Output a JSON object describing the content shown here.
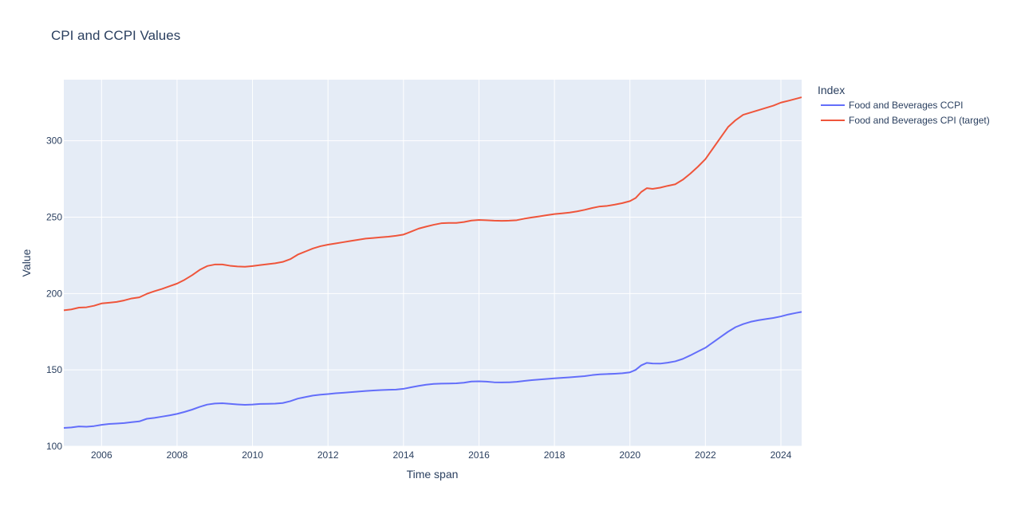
{
  "chart_data": {
    "type": "line",
    "title": "CPI and CCPI Values",
    "xlabel": "Time span",
    "ylabel": "Value",
    "xlim": [
      2005.0,
      2024.55
    ],
    "ylim": [
      100,
      340
    ],
    "x_ticks": [
      2006,
      2008,
      2010,
      2012,
      2014,
      2016,
      2018,
      2020,
      2022,
      2024
    ],
    "x_tick_labels": [
      "2006",
      "2008",
      "2010",
      "2012",
      "2014",
      "2016",
      "2018",
      "2020",
      "2022",
      "2024"
    ],
    "y_ticks": [
      100,
      150,
      200,
      250,
      300
    ],
    "y_tick_labels": [
      "100",
      "150",
      "200",
      "250",
      "300"
    ],
    "grid": true,
    "background": "#e5ecf6",
    "legend": {
      "title": "Index",
      "placement": "right"
    },
    "series": [
      {
        "name": "Food and Beverages CCPI",
        "color": "#636efa",
        "points": [
          [
            2005.0,
            112.0
          ],
          [
            2005.2,
            112.3
          ],
          [
            2005.4,
            113.0
          ],
          [
            2005.6,
            112.8
          ],
          [
            2005.8,
            113.2
          ],
          [
            2006.0,
            114.0
          ],
          [
            2006.2,
            114.6
          ],
          [
            2006.4,
            114.9
          ],
          [
            2006.6,
            115.2
          ],
          [
            2006.8,
            115.8
          ],
          [
            2007.0,
            116.3
          ],
          [
            2007.2,
            118.0
          ],
          [
            2007.4,
            118.6
          ],
          [
            2007.6,
            119.4
          ],
          [
            2007.8,
            120.2
          ],
          [
            2008.0,
            121.2
          ],
          [
            2008.2,
            122.5
          ],
          [
            2008.4,
            124.0
          ],
          [
            2008.6,
            125.8
          ],
          [
            2008.8,
            127.3
          ],
          [
            2009.0,
            128.0
          ],
          [
            2009.2,
            128.2
          ],
          [
            2009.4,
            127.8
          ],
          [
            2009.6,
            127.4
          ],
          [
            2009.8,
            127.1
          ],
          [
            2010.0,
            127.3
          ],
          [
            2010.2,
            127.7
          ],
          [
            2010.4,
            127.8
          ],
          [
            2010.6,
            127.9
          ],
          [
            2010.8,
            128.3
          ],
          [
            2011.0,
            129.5
          ],
          [
            2011.2,
            131.2
          ],
          [
            2011.4,
            132.2
          ],
          [
            2011.6,
            133.2
          ],
          [
            2011.8,
            133.8
          ],
          [
            2012.0,
            134.2
          ],
          [
            2012.2,
            134.7
          ],
          [
            2012.4,
            135.0
          ],
          [
            2012.6,
            135.4
          ],
          [
            2012.8,
            135.8
          ],
          [
            2013.0,
            136.2
          ],
          [
            2013.2,
            136.5
          ],
          [
            2013.4,
            136.8
          ],
          [
            2013.6,
            137.0
          ],
          [
            2013.8,
            137.1
          ],
          [
            2014.0,
            137.6
          ],
          [
            2014.2,
            138.6
          ],
          [
            2014.4,
            139.5
          ],
          [
            2014.6,
            140.3
          ],
          [
            2014.8,
            140.8
          ],
          [
            2015.0,
            141.0
          ],
          [
            2015.2,
            141.1
          ],
          [
            2015.4,
            141.2
          ],
          [
            2015.6,
            141.6
          ],
          [
            2015.8,
            142.4
          ],
          [
            2016.0,
            142.5
          ],
          [
            2016.2,
            142.3
          ],
          [
            2016.4,
            141.9
          ],
          [
            2016.6,
            141.8
          ],
          [
            2016.8,
            141.9
          ],
          [
            2017.0,
            142.2
          ],
          [
            2017.2,
            142.8
          ],
          [
            2017.4,
            143.3
          ],
          [
            2017.6,
            143.7
          ],
          [
            2017.8,
            144.1
          ],
          [
            2018.0,
            144.5
          ],
          [
            2018.2,
            144.8
          ],
          [
            2018.4,
            145.1
          ],
          [
            2018.6,
            145.5
          ],
          [
            2018.8,
            145.9
          ],
          [
            2019.0,
            146.6
          ],
          [
            2019.2,
            147.1
          ],
          [
            2019.4,
            147.3
          ],
          [
            2019.6,
            147.5
          ],
          [
            2019.8,
            147.8
          ],
          [
            2020.0,
            148.4
          ],
          [
            2020.15,
            150.0
          ],
          [
            2020.3,
            153.0
          ],
          [
            2020.45,
            154.6
          ],
          [
            2020.6,
            154.2
          ],
          [
            2020.8,
            154.1
          ],
          [
            2021.0,
            154.7
          ],
          [
            2021.2,
            155.6
          ],
          [
            2021.4,
            157.2
          ],
          [
            2021.6,
            159.5
          ],
          [
            2021.8,
            162.0
          ],
          [
            2022.0,
            164.5
          ],
          [
            2022.2,
            168.0
          ],
          [
            2022.4,
            171.5
          ],
          [
            2022.6,
            175.0
          ],
          [
            2022.8,
            178.0
          ],
          [
            2023.0,
            180.0
          ],
          [
            2023.2,
            181.5
          ],
          [
            2023.4,
            182.5
          ],
          [
            2023.6,
            183.3
          ],
          [
            2023.8,
            184.0
          ],
          [
            2024.0,
            185.0
          ],
          [
            2024.2,
            186.3
          ],
          [
            2024.4,
            187.3
          ],
          [
            2024.55,
            188.0
          ]
        ]
      },
      {
        "name": "Food and Beverages CPI (target)",
        "color": "#ef553b",
        "points": [
          [
            2005.0,
            189.0
          ],
          [
            2005.2,
            189.6
          ],
          [
            2005.4,
            190.8
          ],
          [
            2005.6,
            191.0
          ],
          [
            2005.8,
            192.0
          ],
          [
            2006.0,
            193.5
          ],
          [
            2006.2,
            194.0
          ],
          [
            2006.4,
            194.5
          ],
          [
            2006.6,
            195.5
          ],
          [
            2006.8,
            196.8
          ],
          [
            2007.0,
            197.5
          ],
          [
            2007.2,
            199.8
          ],
          [
            2007.4,
            201.5
          ],
          [
            2007.6,
            203.0
          ],
          [
            2007.8,
            204.8
          ],
          [
            2008.0,
            206.5
          ],
          [
            2008.2,
            209.0
          ],
          [
            2008.4,
            212.0
          ],
          [
            2008.6,
            215.5
          ],
          [
            2008.8,
            218.0
          ],
          [
            2009.0,
            219.0
          ],
          [
            2009.2,
            219.0
          ],
          [
            2009.4,
            218.2
          ],
          [
            2009.6,
            217.7
          ],
          [
            2009.8,
            217.5
          ],
          [
            2010.0,
            218.0
          ],
          [
            2010.2,
            218.6
          ],
          [
            2010.4,
            219.2
          ],
          [
            2010.6,
            219.8
          ],
          [
            2010.8,
            220.7
          ],
          [
            2011.0,
            222.5
          ],
          [
            2011.2,
            225.5
          ],
          [
            2011.4,
            227.5
          ],
          [
            2011.6,
            229.5
          ],
          [
            2011.8,
            231.0
          ],
          [
            2012.0,
            232.0
          ],
          [
            2012.2,
            232.8
          ],
          [
            2012.4,
            233.6
          ],
          [
            2012.6,
            234.4
          ],
          [
            2012.8,
            235.2
          ],
          [
            2013.0,
            236.0
          ],
          [
            2013.2,
            236.4
          ],
          [
            2013.4,
            236.8
          ],
          [
            2013.6,
            237.2
          ],
          [
            2013.8,
            237.8
          ],
          [
            2014.0,
            238.6
          ],
          [
            2014.2,
            240.5
          ],
          [
            2014.4,
            242.5
          ],
          [
            2014.6,
            243.8
          ],
          [
            2014.8,
            245.0
          ],
          [
            2015.0,
            246.0
          ],
          [
            2015.2,
            246.2
          ],
          [
            2015.4,
            246.2
          ],
          [
            2015.6,
            246.8
          ],
          [
            2015.8,
            247.8
          ],
          [
            2016.0,
            248.2
          ],
          [
            2016.2,
            248.0
          ],
          [
            2016.4,
            247.7
          ],
          [
            2016.6,
            247.6
          ],
          [
            2016.8,
            247.7
          ],
          [
            2017.0,
            248.0
          ],
          [
            2017.2,
            249.0
          ],
          [
            2017.4,
            249.8
          ],
          [
            2017.6,
            250.5
          ],
          [
            2017.8,
            251.3
          ],
          [
            2018.0,
            252.0
          ],
          [
            2018.2,
            252.5
          ],
          [
            2018.4,
            253.0
          ],
          [
            2018.6,
            253.8
          ],
          [
            2018.8,
            254.8
          ],
          [
            2019.0,
            256.0
          ],
          [
            2019.2,
            257.0
          ],
          [
            2019.4,
            257.4
          ],
          [
            2019.6,
            258.2
          ],
          [
            2019.8,
            259.2
          ],
          [
            2020.0,
            260.5
          ],
          [
            2020.15,
            262.5
          ],
          [
            2020.3,
            266.5
          ],
          [
            2020.45,
            269.0
          ],
          [
            2020.6,
            268.5
          ],
          [
            2020.8,
            269.3
          ],
          [
            2021.0,
            270.5
          ],
          [
            2021.2,
            271.5
          ],
          [
            2021.4,
            274.5
          ],
          [
            2021.6,
            278.5
          ],
          [
            2021.8,
            283.0
          ],
          [
            2022.0,
            288.0
          ],
          [
            2022.2,
            295.0
          ],
          [
            2022.4,
            302.0
          ],
          [
            2022.6,
            309.0
          ],
          [
            2022.8,
            313.5
          ],
          [
            2023.0,
            317.0
          ],
          [
            2023.2,
            318.5
          ],
          [
            2023.4,
            320.0
          ],
          [
            2023.6,
            321.5
          ],
          [
            2023.8,
            323.0
          ],
          [
            2024.0,
            325.0
          ],
          [
            2024.2,
            326.2
          ],
          [
            2024.4,
            327.5
          ],
          [
            2024.55,
            328.5
          ]
        ]
      }
    ]
  }
}
